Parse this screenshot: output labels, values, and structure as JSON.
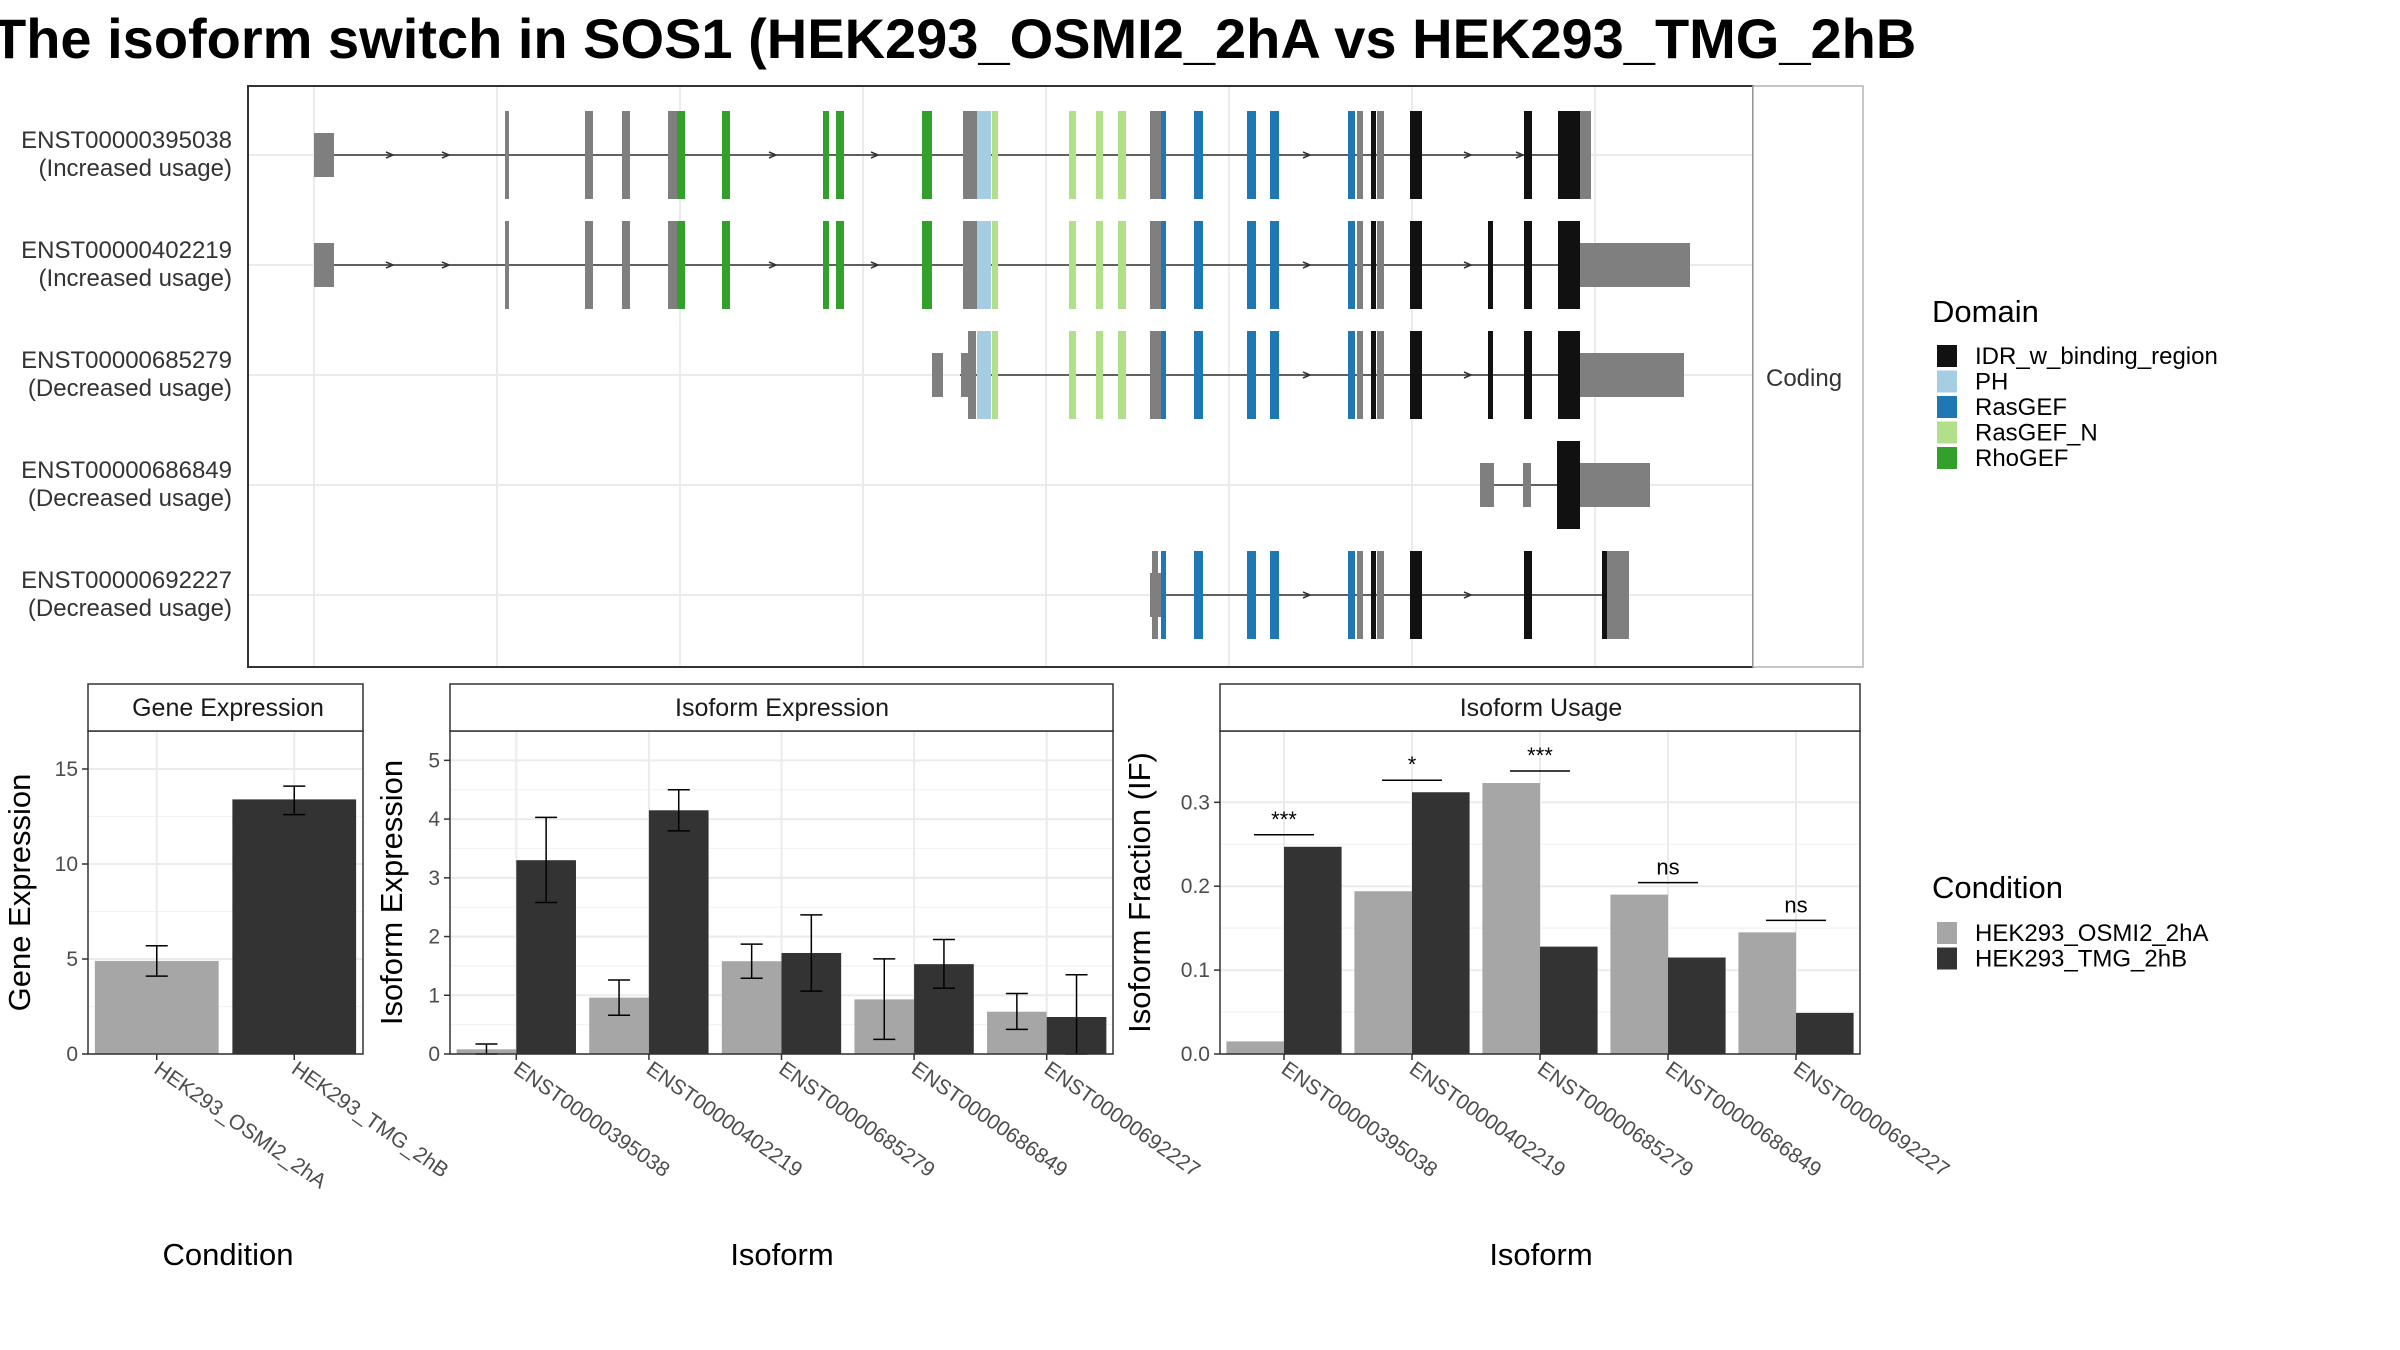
{
  "title": "The isoform switch in SOS1 (HEK293_OSMI2_2hA vs HEK293_TMG_2hB",
  "colors": {
    "condA": "#a6a6a6",
    "condB": "#333333",
    "IDR_w_binding_region": "#111111",
    "PH": "#a6cee3",
    "RasGEF": "#1f78b4",
    "RasGEF_N": "#b2df8a",
    "RhoGEF": "#33a02c",
    "none": "#7f7f7f"
  },
  "structure": {
    "facet_label": "Coding",
    "isoforms": [
      {
        "id": "ENST00000395038",
        "usage": "(Increased usage)"
      },
      {
        "id": "ENST00000402219",
        "usage": "(Increased usage)"
      },
      {
        "id": "ENST00000685279",
        "usage": "(Decreased usage)"
      },
      {
        "id": "ENST00000686849",
        "usage": "(Decreased usage)"
      },
      {
        "id": "ENST00000692227",
        "usage": "(Decreased usage)"
      }
    ]
  },
  "legend_domain": {
    "title": "Domain",
    "items": [
      "IDR_w_binding_region",
      "PH",
      "RasGEF",
      "RasGEF_N",
      "RhoGEF"
    ]
  },
  "legend_condition": {
    "title": "Condition",
    "items": [
      "HEK293_OSMI2_2hA",
      "HEK293_TMG_2hB"
    ]
  },
  "chart_data": [
    {
      "type": "bar",
      "strip": "Gene Expression",
      "xlabel": "Condition",
      "ylabel": "Gene Expression",
      "categories": [
        "HEK293_OSMI2_2hA",
        "HEK293_TMG_2hB"
      ],
      "values": [
        4.9,
        13.4
      ],
      "errors": [
        [
          4.1,
          5.7
        ],
        [
          12.6,
          14.1
        ]
      ],
      "ylim": [
        0,
        17
      ],
      "yticks": [
        0,
        5,
        10,
        15
      ]
    },
    {
      "type": "bar",
      "strip": "Isoform Expression",
      "xlabel": "Isoform",
      "ylabel": "Isoform Expression",
      "categories": [
        "ENST00000395038",
        "ENST00000402219",
        "ENST00000685279",
        "ENST00000686849",
        "ENST00000692227"
      ],
      "series": [
        {
          "name": "HEK293_OSMI2_2hA",
          "values": [
            0.08,
            0.96,
            1.58,
            0.93,
            0.72
          ],
          "errors": [
            [
              0.0,
              0.17
            ],
            [
              0.66,
              1.26
            ],
            [
              1.29,
              1.87
            ],
            [
              0.25,
              1.62
            ],
            [
              0.42,
              1.03
            ]
          ]
        },
        {
          "name": "HEK293_TMG_2hB",
          "values": [
            3.3,
            4.15,
            1.72,
            1.53,
            0.63
          ],
          "errors": [
            [
              2.58,
              4.03
            ],
            [
              3.8,
              4.5
            ],
            [
              1.07,
              2.37
            ],
            [
              1.12,
              1.95
            ],
            [
              0.0,
              1.35
            ]
          ]
        }
      ],
      "ylim": [
        0,
        5.5
      ],
      "yticks": [
        0,
        1,
        2,
        3,
        4,
        5
      ]
    },
    {
      "type": "bar",
      "strip": "Isoform Usage",
      "xlabel": "Isoform",
      "ylabel": "Isoform Fraction (IF)",
      "categories": [
        "ENST00000395038",
        "ENST00000402219",
        "ENST00000685279",
        "ENST00000686849",
        "ENST00000692227"
      ],
      "series": [
        {
          "name": "HEK293_OSMI2_2hA",
          "values": [
            0.015,
            0.194,
            0.323,
            0.19,
            0.145
          ]
        },
        {
          "name": "HEK293_TMG_2hB",
          "values": [
            0.247,
            0.312,
            0.128,
            0.115,
            0.049
          ]
        }
      ],
      "significance": [
        "***",
        "*",
        "***",
        "ns",
        "ns"
      ],
      "ylim": [
        0,
        0.385
      ],
      "yticks": [
        0.0,
        0.1,
        0.2,
        0.3
      ],
      "yticklabels": [
        "0.0",
        "0.1",
        "0.2",
        "0.3"
      ]
    }
  ]
}
